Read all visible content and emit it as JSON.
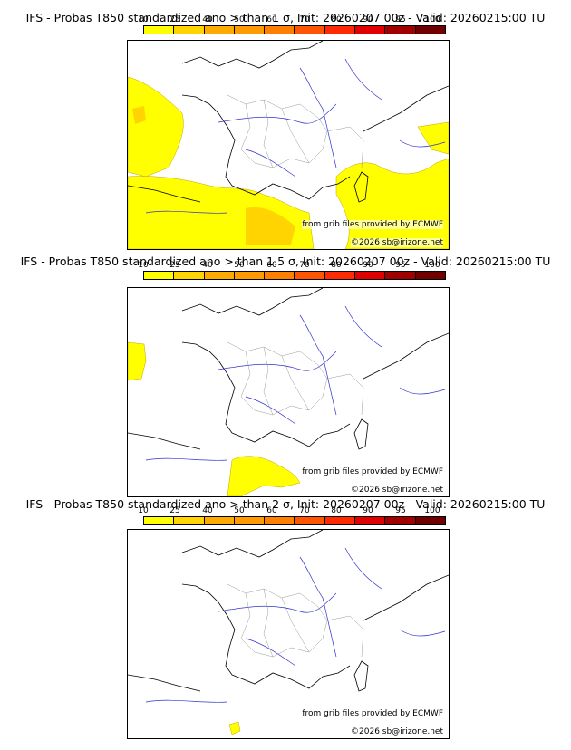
{
  "scale": {
    "labels": [
      "10",
      "25",
      "40",
      "50",
      "60",
      "70",
      "80",
      "90",
      "95",
      "100"
    ],
    "colors": [
      "#ffff00",
      "#ffd400",
      "#ffaa00",
      "#ff9a00",
      "#ff7f00",
      "#ff5500",
      "#ff2a00",
      "#e00000",
      "#a00000",
      "#700000"
    ]
  },
  "panels": [
    {
      "title": "IFS - Probas T850  standardized ano > than 1 σ, Init: 20260207 00z - Valid: 20260215:00 TU",
      "source": "from grib files provided by ECMWF",
      "copyright": "©2026 sb@irizone.net",
      "coverage": "wide"
    },
    {
      "title": "IFS - Probas T850  standardized ano > than 1.5 σ, Init: 20260207 00z - Valid: 20260215:00 TU",
      "source": "from grib files provided by ECMWF",
      "copyright": "©2026 sb@irizone.net",
      "coverage": "medium"
    },
    {
      "title": "IFS - Probas T850  standardized ano > than 2 σ, Init: 20260207 00z - Valid: 20260215:00 TU",
      "source": "from grib files provided by ECMWF",
      "copyright": "©2026 sb@irizone.net",
      "coverage": "small"
    }
  ],
  "colors": {
    "coastline": "#000000",
    "rivers": "#3333cc",
    "borders": "#999999",
    "probability_fill": "#ffff00",
    "probability_fill_25": "#ffd400"
  }
}
